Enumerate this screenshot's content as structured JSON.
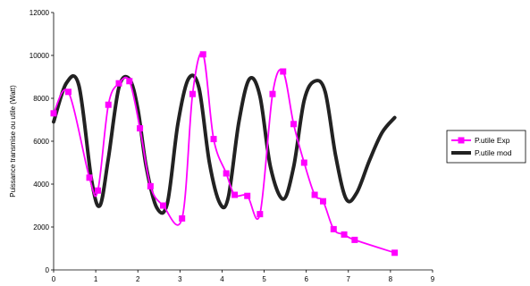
{
  "chart_data": {
    "type": "line",
    "title": "",
    "xlabel": "",
    "ylabel": "Puissance transmise ou utile (Watt)",
    "xlim": [
      0,
      9
    ],
    "ylim": [
      0,
      12000
    ],
    "xticks": [
      "0",
      "1",
      "2",
      "3",
      "4",
      "5",
      "6",
      "7",
      "8",
      "9"
    ],
    "yticks": [
      "0",
      "2000",
      "4000",
      "6000",
      "8000",
      "10000",
      "12000"
    ],
    "grid": false,
    "legend_position": "right",
    "series": [
      {
        "name": "P.utile Exp",
        "color": "#ff00ff",
        "marker": "square",
        "x": [
          0.0,
          0.35,
          0.85,
          1.05,
          1.3,
          1.55,
          1.8,
          2.05,
          2.3,
          2.6,
          3.05,
          3.3,
          3.55,
          3.8,
          4.1,
          4.3,
          4.6,
          4.9,
          5.2,
          5.45,
          5.7,
          5.95,
          6.2,
          6.4,
          6.65,
          6.9,
          7.15,
          8.1
        ],
        "values": [
          7300,
          8300,
          4300,
          3700,
          7700,
          8700,
          8800,
          6600,
          3900,
          3000,
          2400,
          8200,
          10050,
          6100,
          4500,
          3500,
          3450,
          2600,
          8200,
          9250,
          6800,
          5000,
          3500,
          3200,
          1900,
          1650,
          1400,
          800
        ]
      },
      {
        "name": "P.utile mod",
        "color": "#222222",
        "marker": "none",
        "x": [
          0.0,
          0.3,
          0.6,
          0.9,
          1.1,
          1.3,
          1.55,
          1.8,
          2.0,
          2.2,
          2.45,
          2.7,
          2.95,
          3.2,
          3.45,
          3.7,
          3.95,
          4.15,
          4.4,
          4.65,
          4.9,
          5.15,
          5.45,
          5.7,
          5.95,
          6.2,
          6.45,
          6.7,
          6.95,
          7.2,
          7.5,
          7.8,
          8.1
        ],
        "values": [
          6900,
          8700,
          8600,
          4200,
          3000,
          5200,
          8500,
          8900,
          7500,
          4800,
          2900,
          3100,
          6800,
          8900,
          8500,
          5000,
          3100,
          3400,
          6900,
          8900,
          8100,
          4800,
          3300,
          4800,
          7900,
          8800,
          8300,
          5300,
          3300,
          3600,
          5100,
          6400,
          7100
        ]
      }
    ]
  }
}
